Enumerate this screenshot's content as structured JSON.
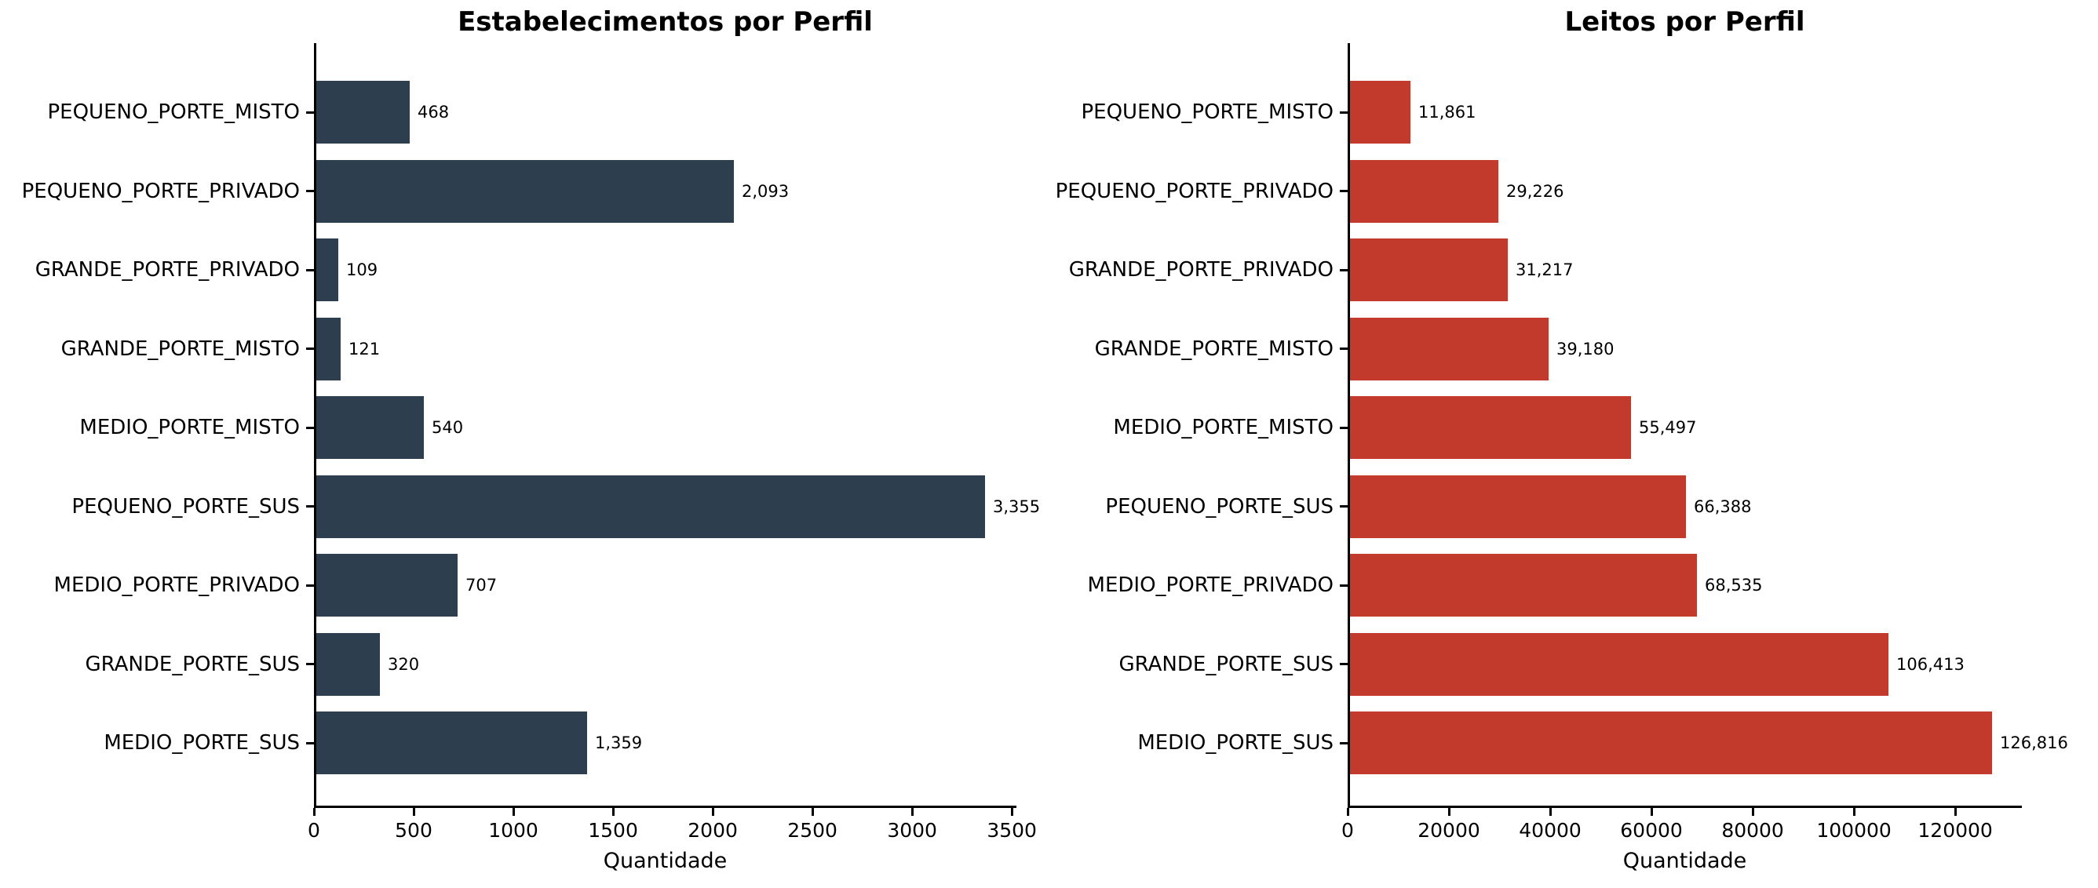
{
  "chart_data": [
    {
      "type": "bar",
      "orientation": "horizontal",
      "title": "Estabelecimentos por Perfil",
      "xlabel": "Quantidade",
      "ylabel": "",
      "bar_color": "#2d3e4e",
      "grid": false,
      "legend": null,
      "categories": [
        "PEQUENO_PORTE_MISTO",
        "PEQUENO_PORTE_PRIVADO",
        "GRANDE_PORTE_PRIVADO",
        "GRANDE_PORTE_MISTO",
        "MEDIO_PORTE_MISTO",
        "PEQUENO_PORTE_SUS",
        "MEDIO_PORTE_PRIVADO",
        "GRANDE_PORTE_SUS",
        "MEDIO_PORTE_SUS"
      ],
      "values": [
        468,
        2093,
        109,
        121,
        540,
        3355,
        707,
        320,
        1359
      ],
      "value_labels": [
        "468",
        "2,093",
        "109",
        "121",
        "540",
        "3,355",
        "707",
        "320",
        "1,359"
      ],
      "xlim": [
        0,
        3523
      ],
      "xticks": [
        0,
        500,
        1000,
        1500,
        2000,
        2500,
        3000,
        3500
      ],
      "xtick_labels": [
        "0",
        "500",
        "1000",
        "1500",
        "2000",
        "2500",
        "3000",
        "3500"
      ]
    },
    {
      "type": "bar",
      "orientation": "horizontal",
      "title": "Leitos por Perfil",
      "xlabel": "Quantidade",
      "ylabel": "",
      "bar_color": "#c23a2c",
      "grid": false,
      "legend": null,
      "categories": [
        "PEQUENO_PORTE_MISTO",
        "PEQUENO_PORTE_PRIVADO",
        "GRANDE_PORTE_PRIVADO",
        "GRANDE_PORTE_MISTO",
        "MEDIO_PORTE_MISTO",
        "PEQUENO_PORTE_SUS",
        "MEDIO_PORTE_PRIVADO",
        "GRANDE_PORTE_SUS",
        "MEDIO_PORTE_SUS"
      ],
      "values": [
        11861,
        29226,
        31217,
        39180,
        55497,
        66388,
        68535,
        106413,
        126816
      ],
      "value_labels": [
        "11,861",
        "29,226",
        "31,217",
        "39,180",
        "55,497",
        "66,388",
        "68,535",
        "106,413",
        "126,816"
      ],
      "xlim": [
        0,
        133157
      ],
      "xticks": [
        0,
        20000,
        40000,
        60000,
        80000,
        100000,
        120000
      ],
      "xtick_labels": [
        "0",
        "20000",
        "40000",
        "60000",
        "80000",
        "100000",
        "120000"
      ]
    }
  ]
}
